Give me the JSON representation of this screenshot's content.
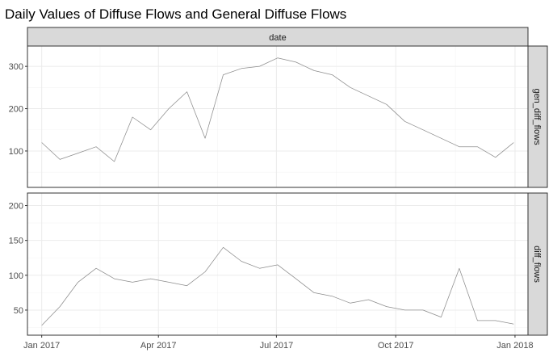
{
  "chart_data": {
    "type": "line",
    "title": "Daily Values of Diffuse Flows and General Diffuse Flows",
    "facet_column_label": "date",
    "x_ticks": [
      {
        "date": "2017-01-01",
        "label": "Jan 2017"
      },
      {
        "date": "2017-04-01",
        "label": "Apr 2017"
      },
      {
        "date": "2017-07-01",
        "label": "Jul 2017"
      },
      {
        "date": "2017-10-01",
        "label": "Oct 2017"
      },
      {
        "date": "2018-01-01",
        "label": "Jan 2018"
      }
    ],
    "xlim": [
      "2016-12-21",
      "2018-01-11"
    ],
    "grid": true,
    "series": [
      {
        "name": "gen_diff_flows",
        "ylim": [
          14,
          348
        ],
        "y_ticks": [
          100,
          200,
          300
        ],
        "x": [
          "2017-01-01",
          "2017-01-15",
          "2017-01-29",
          "2017-02-12",
          "2017-02-26",
          "2017-03-12",
          "2017-03-26",
          "2017-04-09",
          "2017-04-23",
          "2017-05-07",
          "2017-05-21",
          "2017-06-04",
          "2017-06-18",
          "2017-07-02",
          "2017-07-16",
          "2017-07-30",
          "2017-08-13",
          "2017-08-27",
          "2017-09-10",
          "2017-09-24",
          "2017-10-08",
          "2017-10-22",
          "2017-11-05",
          "2017-11-19",
          "2017-12-03",
          "2017-12-17",
          "2017-12-31"
        ],
        "values": [
          120,
          80,
          95,
          110,
          75,
          180,
          150,
          200,
          240,
          130,
          280,
          295,
          300,
          320,
          310,
          290,
          280,
          250,
          230,
          210,
          170,
          150,
          130,
          110,
          110,
          85,
          120
        ]
      },
      {
        "name": "diff_flows",
        "ylim": [
          14,
          218
        ],
        "y_ticks": [
          50,
          100,
          150,
          200
        ],
        "x": [
          "2017-01-01",
          "2017-01-15",
          "2017-01-29",
          "2017-02-12",
          "2017-02-26",
          "2017-03-12",
          "2017-03-26",
          "2017-04-09",
          "2017-04-23",
          "2017-05-07",
          "2017-05-21",
          "2017-06-04",
          "2017-06-18",
          "2017-07-02",
          "2017-07-16",
          "2017-07-30",
          "2017-08-13",
          "2017-08-27",
          "2017-09-10",
          "2017-09-24",
          "2017-10-08",
          "2017-10-22",
          "2017-11-05",
          "2017-11-19",
          "2017-12-03",
          "2017-12-17",
          "2017-12-31"
        ],
        "values": [
          28,
          55,
          90,
          110,
          95,
          90,
          95,
          90,
          85,
          105,
          140,
          120,
          110,
          115,
          95,
          75,
          70,
          60,
          65,
          55,
          50,
          50,
          40,
          110,
          35,
          35,
          30
        ]
      }
    ]
  }
}
